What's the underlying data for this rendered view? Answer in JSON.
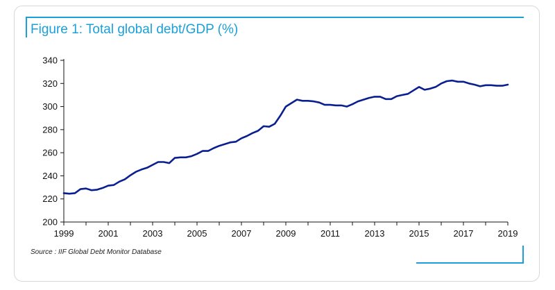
{
  "title": "Figure 1: Total global debt/GDP (%)",
  "source": "Source : IIF Global Debt Monitor Database",
  "colors": {
    "line": "#0a1f8f",
    "accent": "#1a9fd8",
    "axis": "#111111"
  },
  "chart_data": {
    "type": "line",
    "title": "Figure 1: Total global debt/GDP (%)",
    "xlabel": "",
    "ylabel": "",
    "xlim": [
      1999,
      2019
    ],
    "ylim": [
      200,
      340
    ],
    "yticks": [
      200,
      220,
      240,
      260,
      280,
      300,
      320,
      340
    ],
    "xticks": [
      1999,
      2001,
      2003,
      2005,
      2007,
      2009,
      2011,
      2013,
      2015,
      2017,
      2019
    ],
    "grid": false,
    "series": [
      {
        "x": [
          1999.0,
          1999.25,
          1999.5,
          1999.75,
          2000.0,
          2000.25,
          2000.5,
          2000.75,
          2001.0,
          2001.25,
          2001.5,
          2001.75,
          2002.0,
          2002.25,
          2002.5,
          2002.75,
          2003.0,
          2003.25,
          2003.5,
          2003.75,
          2004.0,
          2004.25,
          2004.5,
          2004.75,
          2005.0,
          2005.25,
          2005.5,
          2005.75,
          2006.0,
          2006.25,
          2006.5,
          2006.75,
          2007.0,
          2007.25,
          2007.5,
          2007.75,
          2008.0,
          2008.25,
          2008.5,
          2008.75,
          2009.0,
          2009.25,
          2009.5,
          2009.75,
          2010.0,
          2010.25,
          2010.5,
          2010.75,
          2011.0,
          2011.25,
          2011.5,
          2011.75,
          2012.0,
          2012.25,
          2012.5,
          2012.75,
          2013.0,
          2013.25,
          2013.5,
          2013.75,
          2014.0,
          2014.25,
          2014.5,
          2014.75,
          2015.0,
          2015.25,
          2015.5,
          2015.75,
          2016.0,
          2016.25,
          2016.5,
          2016.75,
          2017.0,
          2017.25,
          2017.5,
          2017.75,
          2018.0,
          2018.25,
          2018.5,
          2018.75,
          2019.0
        ],
        "values": [
          225,
          224.5,
          225,
          228.5,
          229,
          227.5,
          228,
          229.5,
          231.5,
          232,
          235,
          237,
          240.5,
          243.5,
          245.5,
          247,
          249.5,
          252,
          252,
          251,
          255.5,
          256,
          256,
          257,
          259,
          261.5,
          261.5,
          264,
          266,
          267.5,
          269,
          269.5,
          272.5,
          274.5,
          277,
          279,
          283,
          282.5,
          285,
          292,
          300,
          303,
          306,
          305,
          305,
          304.5,
          303.5,
          301.5,
          301.5,
          301,
          301,
          300,
          302,
          304.5,
          306,
          307.5,
          308.5,
          308.5,
          306.5,
          306.5,
          309,
          310,
          311,
          314,
          317,
          314.5,
          315.5,
          317,
          320,
          322,
          322.5,
          321.5,
          321.5,
          320,
          319,
          317.5,
          318.5,
          318.5,
          318,
          318,
          319
        ]
      }
    ]
  }
}
